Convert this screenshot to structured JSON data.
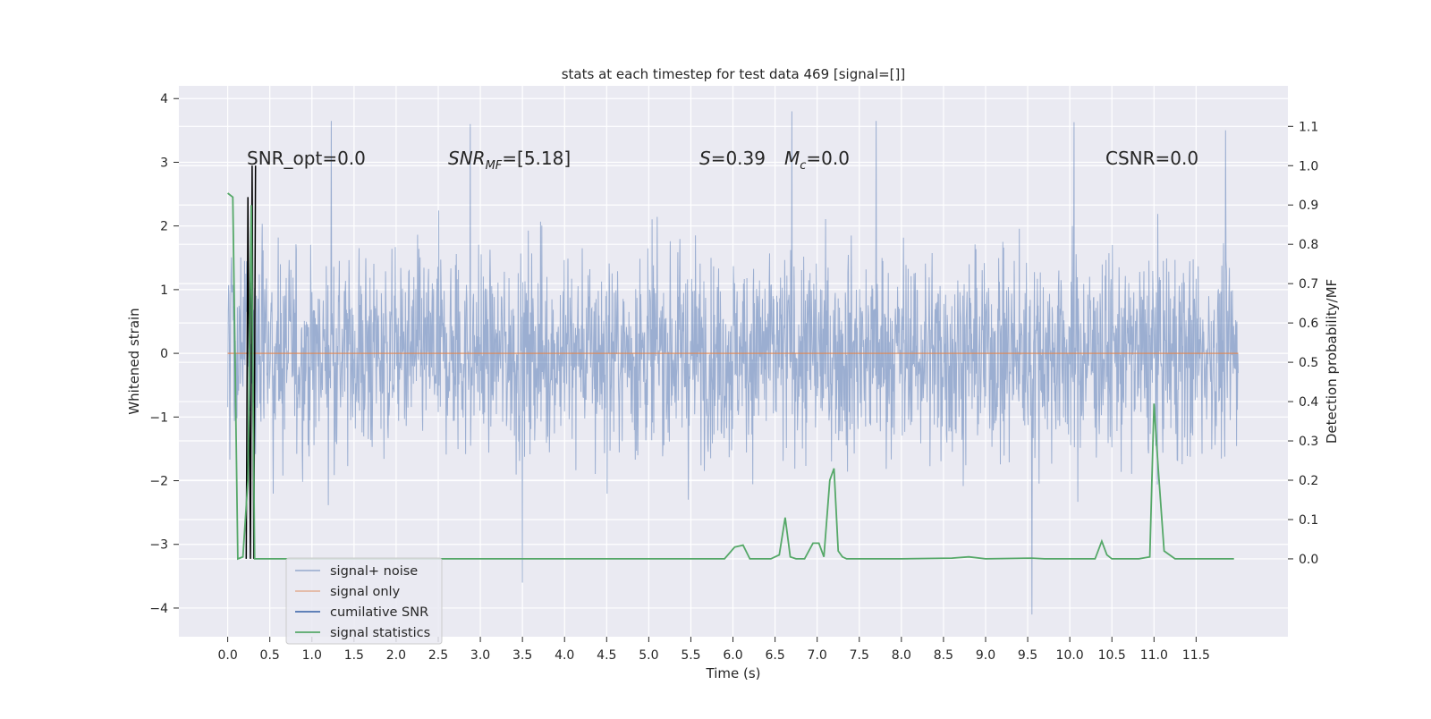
{
  "chart_data": {
    "type": "line",
    "title": "stats at each timestep for test data 469 [signal=[]]",
    "xlabel": "Time (s)",
    "ylabel_left": "Whitened strain",
    "ylabel_right": "Detection probability/MF",
    "xlim": [
      -0.58,
      12.59
    ],
    "ylim_left": [
      -4.45,
      4.2
    ],
    "ylim_right": [
      -0.198,
      1.203
    ],
    "grid": true,
    "x_ticks": [
      "0.0",
      "0.5",
      "1.0",
      "1.5",
      "2.0",
      "2.5",
      "3.0",
      "3.5",
      "4.0",
      "4.5",
      "5.0",
      "5.5",
      "6.0",
      "6.5",
      "7.0",
      "7.5",
      "8.0",
      "8.5",
      "9.0",
      "9.5",
      "10.0",
      "10.5",
      "11.0",
      "11.5"
    ],
    "y_ticks_left": [
      "−4",
      "−3",
      "−2",
      "−1",
      "0",
      "1",
      "2",
      "3",
      "4"
    ],
    "y_ticks_right": [
      "0.0",
      "0.1",
      "0.2",
      "0.3",
      "0.4",
      "0.5",
      "0.6",
      "0.7",
      "0.8",
      "0.9",
      "1.0",
      "1.1"
    ],
    "annotations": {
      "snr_opt": "SNR_opt=0.0",
      "snr_mf_main": "SNR",
      "snr_mf_sub": "MF",
      "snr_mf_value": "=[5.18]",
      "s_symbol": "S",
      "s_value": "=0.39",
      "mc_main": "M",
      "mc_sub": "c",
      "mc_value": "=0.0",
      "csnr": "CSNR=0.0"
    },
    "legend": {
      "position": "lower-left",
      "entries": [
        "signal+ noise",
        "signal only",
        "cumilative SNR",
        "signal statistics"
      ]
    },
    "series": [
      {
        "name": "signal+ noise",
        "color": "#4c72b0",
        "opacity": 0.5,
        "axis": "left",
        "x_range": [
          0.0,
          12.0
        ],
        "approx_range": [
          -4.1,
          3.8
        ],
        "notable_points": [
          [
            1.23,
            3.65
          ],
          [
            2.88,
            3.6
          ],
          [
            6.7,
            3.8
          ],
          [
            7.7,
            3.65
          ],
          [
            10.05,
            3.63
          ],
          [
            11.85,
            3.5
          ],
          [
            3.5,
            -3.6
          ],
          [
            9.55,
            -4.1
          ]
        ]
      },
      {
        "name": "signal only",
        "color": "#dd8452",
        "axis": "left",
        "x": [
          0.0,
          12.0
        ],
        "y": [
          0.0,
          0.0
        ]
      },
      {
        "name": "cumilative SNR",
        "color": "#000000",
        "axis": "right",
        "x": [
          0.22,
          0.24,
          0.27,
          0.29,
          0.31,
          0.33
        ],
        "y": [
          0.0,
          0.92,
          0.0,
          1.0,
          0.0,
          1.0
        ]
      },
      {
        "name": "signal statistics",
        "color": "#55a868",
        "axis": "right",
        "x": [
          0.0,
          0.06,
          0.12,
          0.18,
          0.24,
          0.28,
          0.32,
          0.38,
          0.44,
          0.5,
          1.0,
          2.0,
          3.0,
          4.0,
          5.0,
          5.9,
          6.02,
          6.12,
          6.2,
          6.25,
          6.35,
          6.45,
          6.55,
          6.62,
          6.68,
          6.75,
          6.85,
          6.95,
          7.02,
          7.08,
          7.15,
          7.2,
          7.25,
          7.3,
          7.35,
          7.45,
          7.6,
          8.0,
          8.6,
          8.8,
          9.0,
          9.55,
          9.7,
          10.3,
          10.38,
          10.44,
          10.5,
          10.7,
          10.82,
          10.95,
          11.0,
          11.05,
          11.12,
          11.25,
          11.5,
          11.95
        ],
        "y": [
          0.93,
          0.92,
          0.0,
          0.005,
          0.2,
          0.9,
          0.0,
          0.0,
          0.0,
          0.0,
          0.0,
          0.0,
          0.0,
          0.0,
          0.0,
          0.0,
          0.03,
          0.035,
          0.0,
          0.0,
          0.0,
          0.0,
          0.01,
          0.105,
          0.005,
          0.0,
          0.0,
          0.04,
          0.04,
          0.005,
          0.2,
          0.23,
          0.02,
          0.005,
          0.0,
          0.0,
          0.0,
          0.0,
          0.002,
          0.005,
          0.0,
          0.002,
          0.0,
          0.0,
          0.045,
          0.01,
          0.0,
          0.0,
          0.0,
          0.005,
          0.395,
          0.23,
          0.02,
          0.0,
          0.0,
          0.0
        ]
      }
    ]
  }
}
